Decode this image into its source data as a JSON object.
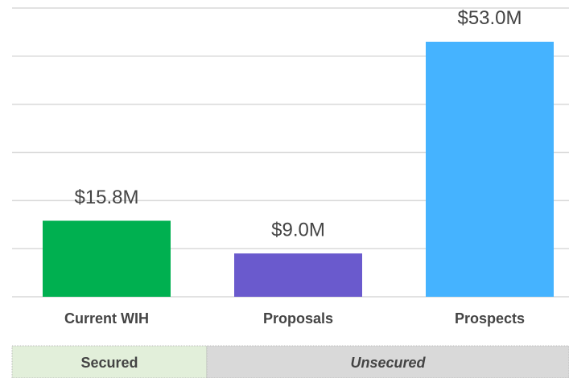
{
  "chart_data": {
    "type": "bar",
    "categories": [
      "Current WIH",
      "Proposals",
      "Prospects"
    ],
    "values": [
      15.8,
      9.0,
      53.0
    ],
    "value_labels": [
      "$15.8M",
      "$9.0M",
      "$53.0M"
    ],
    "colors": [
      "#00b050",
      "#6a5acd",
      "#45b3ff"
    ],
    "ylim": [
      0,
      60
    ],
    "yticks": [
      0,
      10,
      20,
      30,
      40,
      50,
      60
    ],
    "grid": true,
    "groups": [
      {
        "label": "Secured",
        "color": "#e2efda"
      },
      {
        "label": "Unsecured",
        "color": "#d9d9d9"
      }
    ]
  }
}
